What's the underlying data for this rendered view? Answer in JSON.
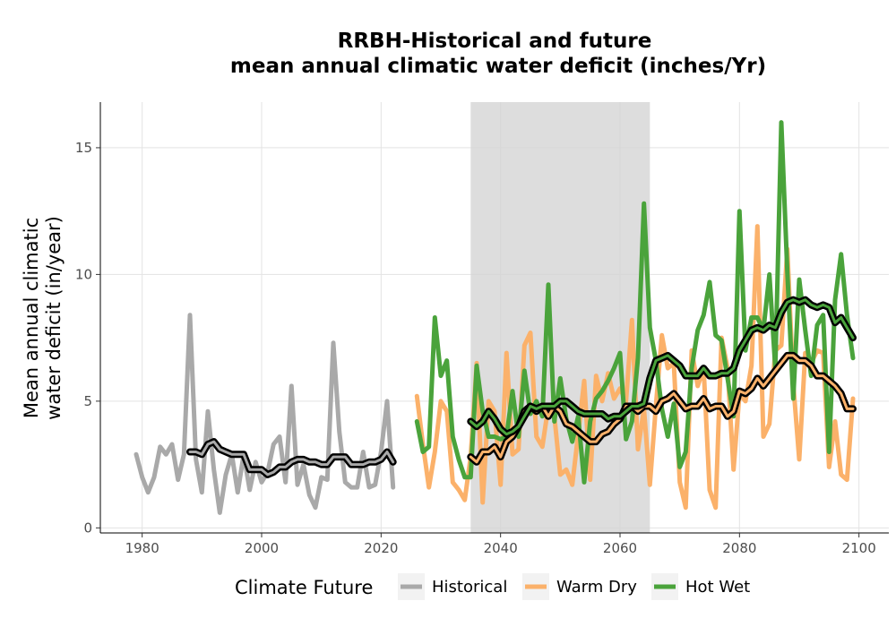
{
  "chart_data": {
    "type": "line",
    "title": [
      "RRBH-Historical and future",
      "mean annual climatic water deficit (inches/Yr)"
    ],
    "xlabel": "",
    "ylabel": [
      "Mean annual climatic",
      "water deficit (in/year)"
    ],
    "xlim": [
      1973,
      2105
    ],
    "ylim": [
      -0.2,
      16.8
    ],
    "x_ticks": [
      1980,
      2000,
      2020,
      2040,
      2060,
      2080,
      2100
    ],
    "y_ticks": [
      0,
      5,
      10,
      15
    ],
    "grid": true,
    "shaded_period": [
      2035,
      2065
    ],
    "legend": {
      "title": "Climate Future",
      "position": "bottom",
      "entries": [
        {
          "label": "Historical",
          "color": "#a9a9a9"
        },
        {
          "label": "Warm Dry",
          "color": "#fbb16a"
        },
        {
          "label": "Hot Wet",
          "color": "#4aa33b"
        }
      ]
    },
    "series": [
      {
        "name": "Historical",
        "color": "#a9a9a9",
        "x": [
          1979,
          1980,
          1981,
          1982,
          1983,
          1984,
          1985,
          1986,
          1987,
          1988,
          1989,
          1990,
          1991,
          1992,
          1993,
          1994,
          1995,
          1996,
          1997,
          1998,
          1999,
          2000,
          2001,
          2002,
          2003,
          2004,
          2005,
          2006,
          2007,
          2008,
          2009,
          2010,
          2011,
          2012,
          2013,
          2014,
          2015,
          2016,
          2017,
          2018,
          2019,
          2020,
          2021,
          2022
        ],
        "y": [
          2.9,
          2.0,
          1.4,
          2.0,
          3.2,
          2.9,
          3.3,
          1.9,
          2.9,
          8.4,
          2.7,
          1.4,
          4.6,
          2.3,
          0.6,
          2.1,
          2.9,
          1.4,
          2.9,
          1.5,
          2.6,
          1.8,
          2.2,
          3.3,
          3.6,
          1.8,
          5.6,
          1.7,
          2.5,
          1.3,
          0.8,
          2.0,
          1.9,
          7.3,
          3.8,
          1.8,
          1.6,
          1.6,
          3.0,
          1.6,
          1.7,
          3.0,
          5.0,
          1.6
        ],
        "smooth_x": [
          1988,
          1989,
          1990,
          1991,
          1992,
          1993,
          1994,
          1995,
          1996,
          1997,
          1998,
          1999,
          2000,
          2001,
          2002,
          2003,
          2004,
          2005,
          2006,
          2007,
          2008,
          2009,
          2010,
          2011,
          2012,
          2013,
          2014,
          2015,
          2016,
          2017,
          2018,
          2019,
          2020,
          2021,
          2022
        ],
        "smooth_y": [
          3.0,
          3.0,
          2.9,
          3.3,
          3.4,
          3.1,
          3.0,
          2.9,
          2.9,
          2.9,
          2.3,
          2.3,
          2.3,
          2.1,
          2.2,
          2.4,
          2.4,
          2.6,
          2.7,
          2.7,
          2.6,
          2.6,
          2.5,
          2.5,
          2.8,
          2.8,
          2.8,
          2.5,
          2.5,
          2.5,
          2.6,
          2.6,
          2.7,
          3.0,
          2.6
        ]
      },
      {
        "name": "Warm Dry",
        "color": "#fbb16a",
        "x": [
          2026,
          2027,
          2028,
          2029,
          2030,
          2031,
          2032,
          2033,
          2034,
          2035,
          2036,
          2037,
          2038,
          2039,
          2040,
          2041,
          2042,
          2043,
          2044,
          2045,
          2046,
          2047,
          2048,
          2049,
          2050,
          2051,
          2052,
          2053,
          2054,
          2055,
          2056,
          2057,
          2058,
          2059,
          2060,
          2061,
          2062,
          2063,
          2064,
          2065,
          2066,
          2067,
          2068,
          2069,
          2070,
          2071,
          2072,
          2073,
          2074,
          2075,
          2076,
          2077,
          2078,
          2079,
          2080,
          2081,
          2082,
          2083,
          2084,
          2085,
          2086,
          2087,
          2088,
          2089,
          2090,
          2091,
          2092,
          2093,
          2094,
          2095,
          2096,
          2097,
          2098,
          2099
        ],
        "y": [
          5.2,
          3.3,
          1.6,
          3.0,
          5.0,
          4.6,
          1.8,
          1.5,
          1.1,
          2.8,
          6.5,
          1.0,
          5.0,
          4.6,
          1.7,
          6.9,
          2.9,
          3.1,
          7.2,
          7.7,
          3.6,
          3.2,
          4.8,
          4.4,
          2.1,
          2.3,
          1.7,
          3.7,
          5.8,
          1.9,
          6.0,
          5.0,
          6.1,
          5.1,
          5.5,
          5.0,
          8.2,
          3.1,
          4.7,
          1.7,
          4.8,
          7.6,
          6.3,
          6.5,
          1.8,
          0.8,
          7.0,
          5.6,
          6.3,
          1.5,
          0.8,
          7.5,
          6.3,
          2.3,
          5.3,
          5.0,
          6.4,
          11.9,
          3.6,
          4.1,
          7.0,
          7.2,
          11.0,
          5.7,
          2.7,
          6.9,
          6.5,
          7.0,
          6.9,
          2.4,
          4.2,
          2.1,
          1.9,
          5.1
        ],
        "smooth_x": [
          2035,
          2036,
          2037,
          2038,
          2039,
          2040,
          2041,
          2042,
          2043,
          2044,
          2045,
          2046,
          2047,
          2048,
          2049,
          2050,
          2051,
          2052,
          2053,
          2054,
          2055,
          2056,
          2057,
          2058,
          2059,
          2060,
          2061,
          2062,
          2063,
          2064,
          2065,
          2066,
          2067,
          2068,
          2069,
          2070,
          2071,
          2072,
          2073,
          2074,
          2075,
          2076,
          2077,
          2078,
          2079,
          2080,
          2081,
          2082,
          2083,
          2084,
          2085,
          2086,
          2087,
          2088,
          2089,
          2090,
          2091,
          2092,
          2093,
          2094,
          2095,
          2096,
          2097,
          2098,
          2099
        ],
        "smooth_y": [
          2.8,
          2.6,
          3.0,
          3.0,
          3.2,
          2.8,
          3.4,
          3.6,
          4.0,
          4.6,
          4.8,
          4.6,
          4.8,
          4.4,
          4.8,
          4.6,
          4.1,
          4.0,
          3.8,
          3.6,
          3.4,
          3.4,
          3.7,
          3.8,
          4.1,
          4.3,
          4.8,
          4.8,
          4.6,
          4.8,
          4.8,
          4.6,
          5.0,
          5.1,
          5.3,
          5.0,
          4.7,
          4.8,
          4.8,
          5.1,
          4.7,
          4.8,
          4.8,
          4.4,
          4.6,
          5.4,
          5.3,
          5.5,
          5.9,
          5.6,
          5.9,
          6.2,
          6.5,
          6.8,
          6.8,
          6.6,
          6.6,
          6.4,
          6.0,
          6.0,
          5.8,
          5.6,
          5.3,
          4.7,
          4.7
        ]
      },
      {
        "name": "Hot Wet",
        "color": "#4aa33b",
        "x": [
          2026,
          2027,
          2028,
          2029,
          2030,
          2031,
          2032,
          2033,
          2034,
          2035,
          2036,
          2037,
          2038,
          2039,
          2040,
          2041,
          2042,
          2043,
          2044,
          2045,
          2046,
          2047,
          2048,
          2049,
          2050,
          2051,
          2052,
          2053,
          2054,
          2055,
          2056,
          2057,
          2058,
          2059,
          2060,
          2061,
          2062,
          2063,
          2064,
          2065,
          2066,
          2067,
          2068,
          2069,
          2070,
          2071,
          2072,
          2073,
          2074,
          2075,
          2076,
          2077,
          2078,
          2079,
          2080,
          2081,
          2082,
          2083,
          2084,
          2085,
          2086,
          2087,
          2088,
          2089,
          2090,
          2091,
          2092,
          2093,
          2094,
          2095,
          2096,
          2097,
          2098,
          2099
        ],
        "y": [
          4.2,
          3.0,
          3.2,
          8.3,
          6.0,
          6.6,
          3.6,
          2.7,
          2.0,
          2.0,
          6.4,
          4.6,
          3.6,
          3.6,
          3.5,
          3.6,
          5.4,
          3.6,
          6.2,
          4.5,
          5.0,
          4.4,
          9.6,
          4.2,
          5.9,
          4.3,
          3.4,
          4.4,
          1.8,
          4.2,
          5.1,
          5.4,
          5.8,
          6.3,
          6.9,
          3.5,
          4.2,
          6.7,
          12.8,
          7.9,
          6.6,
          4.7,
          3.6,
          4.9,
          2.4,
          3.0,
          6.3,
          7.8,
          8.4,
          9.7,
          7.6,
          7.4,
          5.9,
          4.4,
          12.5,
          7.0,
          8.3,
          8.3,
          7.8,
          10.0,
          6.3,
          16.0,
          10.1,
          5.1,
          9.8,
          7.8,
          6.0,
          8.0,
          8.4,
          3.0,
          9.0,
          10.8,
          8.4,
          6.7
        ],
        "smooth_x": [
          2035,
          2036,
          2037,
          2038,
          2039,
          2040,
          2041,
          2042,
          2043,
          2044,
          2045,
          2046,
          2047,
          2048,
          2049,
          2050,
          2051,
          2052,
          2053,
          2054,
          2055,
          2056,
          2057,
          2058,
          2059,
          2060,
          2061,
          2062,
          2063,
          2064,
          2065,
          2066,
          2067,
          2068,
          2069,
          2070,
          2071,
          2072,
          2073,
          2074,
          2075,
          2076,
          2077,
          2078,
          2079,
          2080,
          2081,
          2082,
          2083,
          2084,
          2085,
          2086,
          2087,
          2088,
          2089,
          2090,
          2091,
          2092,
          2093,
          2094,
          2095,
          2096,
          2097,
          2098,
          2099
        ],
        "smooth_y": [
          4.2,
          4.0,
          4.2,
          4.6,
          4.3,
          3.9,
          3.7,
          3.8,
          4.0,
          4.4,
          4.8,
          4.7,
          4.8,
          4.8,
          4.8,
          5.0,
          5.0,
          4.8,
          4.6,
          4.5,
          4.5,
          4.5,
          4.5,
          4.3,
          4.4,
          4.4,
          4.6,
          4.8,
          4.8,
          4.9,
          5.9,
          6.6,
          6.7,
          6.8,
          6.6,
          6.4,
          6.0,
          6.0,
          6.0,
          6.3,
          6.0,
          6.0,
          6.1,
          6.1,
          6.3,
          7.0,
          7.4,
          7.8,
          7.9,
          7.8,
          8.0,
          7.9,
          8.5,
          8.9,
          9.0,
          8.9,
          9.0,
          8.8,
          8.7,
          8.8,
          8.7,
          8.1,
          8.3,
          7.9,
          7.5
        ]
      }
    ]
  }
}
